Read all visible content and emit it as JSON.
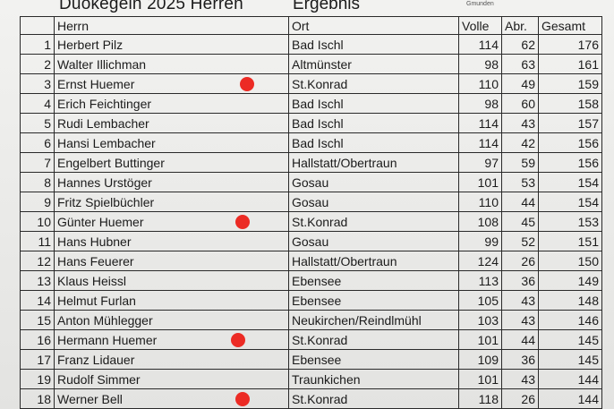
{
  "header": {
    "title": "Duokegeln 2025 Herren",
    "subtitle": "Ergebnis",
    "city": "Gmunden"
  },
  "columns": {
    "rank": "",
    "name": "Herrn",
    "town": "Ort",
    "volle": "Volle",
    "abr": "Abr.",
    "gesamt": "Gesamt"
  },
  "marker_color": "#ec2b24",
  "rows": [
    {
      "rank": "1",
      "name": "Herbert Pilz",
      "town": "Bad Ischl",
      "volle": "114",
      "abr": "62",
      "gesamt": "176",
      "marked": false
    },
    {
      "rank": "2",
      "name": "Walter Illichman",
      "town": "Altmünster",
      "volle": "98",
      "abr": "63",
      "gesamt": "161",
      "marked": false
    },
    {
      "rank": "3",
      "name": "Ernst Huemer",
      "town": "St.Konrad",
      "volle": "110",
      "abr": "49",
      "gesamt": "159",
      "marked": true
    },
    {
      "rank": "4",
      "name": "Erich Feichtinger",
      "town": "Bad Ischl",
      "volle": "98",
      "abr": "60",
      "gesamt": "158",
      "marked": false
    },
    {
      "rank": "5",
      "name": "Rudi Lembacher",
      "town": "Bad Ischl",
      "volle": "114",
      "abr": "43",
      "gesamt": "157",
      "marked": false
    },
    {
      "rank": "6",
      "name": "Hansi Lembacher",
      "town": "Bad Ischl",
      "volle": "114",
      "abr": "42",
      "gesamt": "156",
      "marked": false
    },
    {
      "rank": "7",
      "name": "Engelbert Buttinger",
      "town": "Hallstatt/Obertraun",
      "volle": "97",
      "abr": "59",
      "gesamt": "156",
      "marked": false
    },
    {
      "rank": "8",
      "name": "Hannes Urstöger",
      "town": "Gosau",
      "volle": "101",
      "abr": "53",
      "gesamt": "154",
      "marked": false
    },
    {
      "rank": "9",
      "name": "Fritz Spielbüchler",
      "town": "Gosau",
      "volle": "110",
      "abr": "44",
      "gesamt": "154",
      "marked": false
    },
    {
      "rank": "10",
      "name": "Günter Huemer",
      "town": "St.Konrad",
      "volle": "108",
      "abr": "45",
      "gesamt": "153",
      "marked": true
    },
    {
      "rank": "11",
      "name": "Hans Hubner",
      "town": "Gosau",
      "volle": "99",
      "abr": "52",
      "gesamt": "151",
      "marked": false
    },
    {
      "rank": "12",
      "name": "Hans Feuerer",
      "town": "Hallstatt/Obertraun",
      "volle": "124",
      "abr": "26",
      "gesamt": "150",
      "marked": false
    },
    {
      "rank": "13",
      "name": "Klaus Heissl",
      "town": "Ebensee",
      "volle": "113",
      "abr": "36",
      "gesamt": "149",
      "marked": false
    },
    {
      "rank": "14",
      "name": "Helmut Furlan",
      "town": "Ebensee",
      "volle": "105",
      "abr": "43",
      "gesamt": "148",
      "marked": false
    },
    {
      "rank": "15",
      "name": "Anton Mühlegger",
      "town": "Neukirchen/Reindlmühl",
      "volle": "103",
      "abr": "43",
      "gesamt": "146",
      "marked": false
    },
    {
      "rank": "16",
      "name": "Hermann Huemer",
      "town": "St.Konrad",
      "volle": "101",
      "abr": "44",
      "gesamt": "145",
      "marked": true
    },
    {
      "rank": "17",
      "name": "Franz Lidauer",
      "town": "Ebensee",
      "volle": "109",
      "abr": "36",
      "gesamt": "145",
      "marked": false
    },
    {
      "rank": "19",
      "name": "Rudolf Simmer",
      "town": "Traunkichen",
      "volle": "101",
      "abr": "43",
      "gesamt": "144",
      "marked": false
    },
    {
      "rank": "18",
      "name": "Werner Bell",
      "town": "St.Konrad",
      "volle": "118",
      "abr": "26",
      "gesamt": "144",
      "marked": true
    }
  ]
}
